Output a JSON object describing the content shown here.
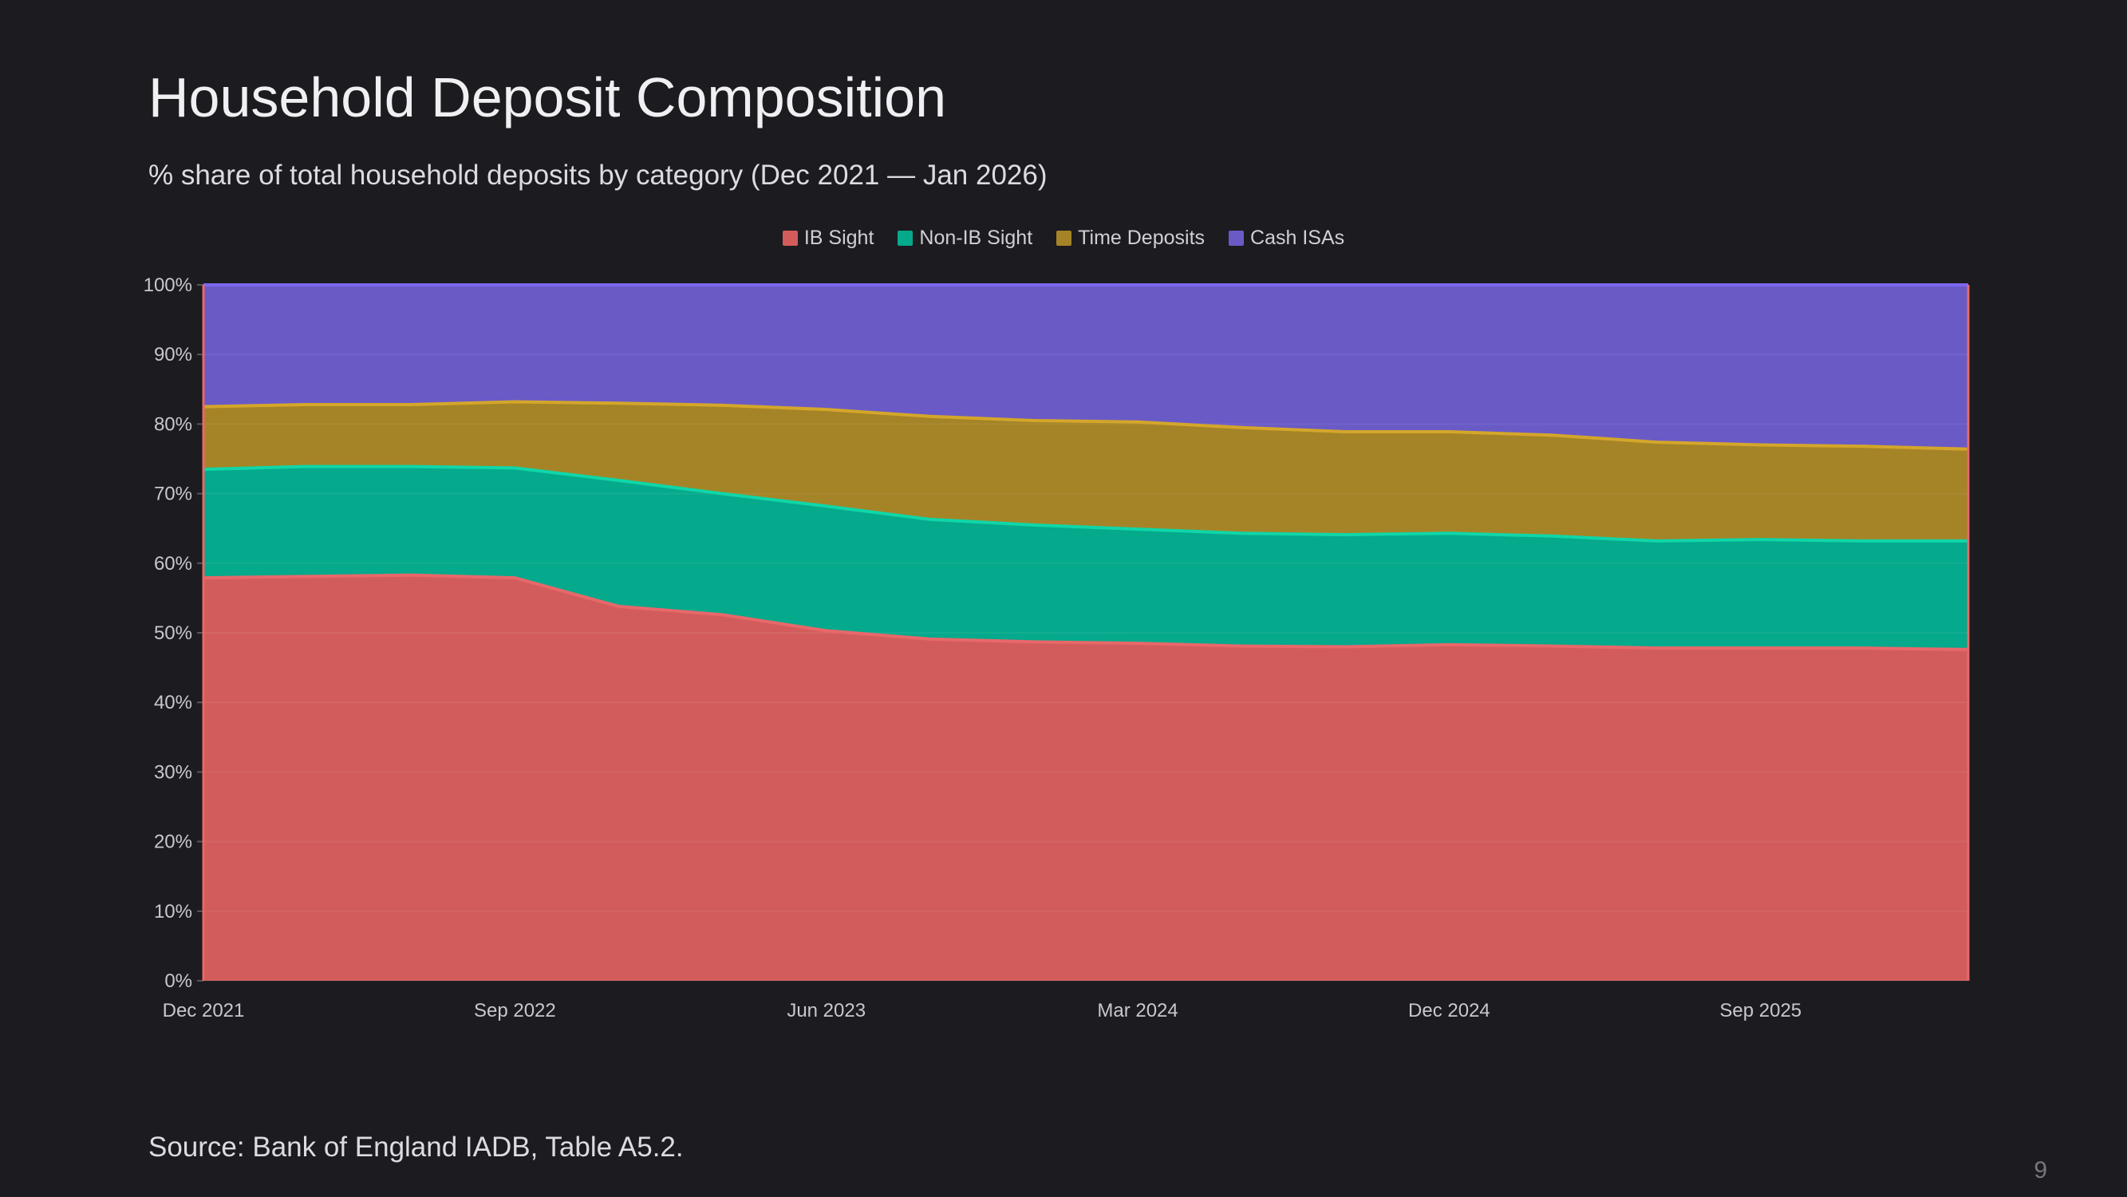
{
  "title": "Household Deposit Composition",
  "subtitle": "% share of total household deposits by category (Dec 2021 — Jan 2026)",
  "source": "Source: Bank of England IADB, Table A5.2.",
  "page_number": "9",
  "chart_data": {
    "type": "area",
    "stacked": true,
    "categories": [
      "Dec 2021",
      "Mar 2022",
      "Jun 2022",
      "Sep 2022",
      "Dec 2022",
      "Mar 2023",
      "Jun 2023",
      "Sep 2023",
      "Dec 2023",
      "Mar 2024",
      "Jun 2024",
      "Sep 2024",
      "Dec 2024",
      "Mar 2025",
      "Jun 2025",
      "Sep 2025",
      "Dec 2025",
      "Jan 2026"
    ],
    "x_tick_labels": [
      "Dec 2021",
      "Sep 2022",
      "Jun 2023",
      "Mar 2024",
      "Dec 2024",
      "Sep 2025"
    ],
    "y_tick_labels": [
      "0%",
      "10%",
      "20%",
      "30%",
      "40%",
      "50%",
      "60%",
      "70%",
      "80%",
      "90%",
      "100%"
    ],
    "ylim": [
      0,
      100
    ],
    "grid": true,
    "legend_position": "top-center",
    "series": [
      {
        "name": "IB Sight",
        "color": "#d25c5c",
        "line": "#e8686a",
        "values": [
          57.9,
          58.1,
          58.3,
          57.9,
          53.8,
          52.6,
          50.3,
          49.1,
          48.7,
          48.5,
          48.1,
          48.0,
          48.3,
          48.1,
          47.8,
          47.8,
          47.8,
          47.6
        ]
      },
      {
        "name": "Non-IB Sight",
        "color": "#05a98c",
        "line": "#0fd6a8",
        "values": [
          15.6,
          15.8,
          15.6,
          15.8,
          18.1,
          17.4,
          17.9,
          17.2,
          16.8,
          16.4,
          16.2,
          16.1,
          16.0,
          15.8,
          15.4,
          15.6,
          15.4,
          15.6
        ]
      },
      {
        "name": "Time Deposits",
        "color": "#a58427",
        "line": "#d4a62a",
        "values": [
          9.0,
          8.9,
          8.9,
          9.5,
          11.1,
          12.7,
          13.9,
          14.8,
          15.0,
          15.4,
          15.2,
          14.8,
          14.6,
          14.5,
          14.2,
          13.6,
          13.6,
          13.2
        ]
      },
      {
        "name": "Cash ISAs",
        "color": "#6a5ac6",
        "line": "#7b69f0",
        "values": [
          17.5,
          17.2,
          17.2,
          16.8,
          17.0,
          17.3,
          17.9,
          18.9,
          19.5,
          19.7,
          20.5,
          21.1,
          21.1,
          21.6,
          22.6,
          23.0,
          23.2,
          23.6
        ]
      }
    ]
  }
}
